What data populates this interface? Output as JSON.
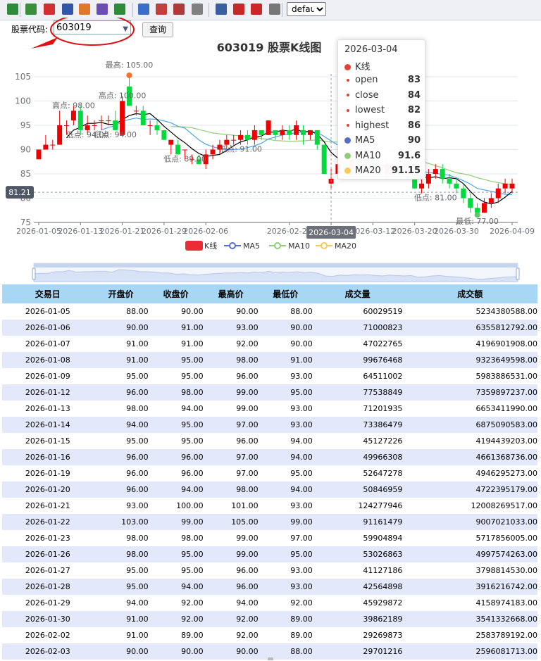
{
  "toolbar": {
    "icons": [
      "excel-icon",
      "csv-icon",
      "pdf-icon",
      "word-icon",
      "ppt-icon",
      "image-icon",
      "download-icon",
      "print-preview-icon",
      "print-preview-icon",
      "print-preview-icon",
      "print-icon",
      "save-icon",
      "pdf-icon",
      "pdf-icon",
      "print-icon"
    ],
    "theme_value": "default",
    "theme_options": [
      "default"
    ]
  },
  "form": {
    "code_label": "股票代码:",
    "code_value": "603019",
    "query_label": "查询"
  },
  "chart_data": {
    "type": "candlestick",
    "title": "603019 股票K线图",
    "x": [
      "2026-01-05",
      "2026-01-06",
      "2026-01-07",
      "2026-01-08",
      "2026-01-09",
      "2026-01-12",
      "2026-01-13",
      "2026-01-14",
      "2026-01-15",
      "2026-01-16",
      "2026-01-19",
      "2026-01-20",
      "2026-01-21",
      "2026-01-22",
      "2026-01-23",
      "2026-01-26",
      "2026-01-27",
      "2026-01-28",
      "2026-01-29",
      "2026-01-30",
      "2026-02-02",
      "2026-02-03",
      "2026-02-04",
      "2026-02-05",
      "2026-02-06",
      "2026-02-09",
      "2026-02-10",
      "2026-02-11",
      "2026-02-12",
      "2026-02-13",
      "2026-02-16",
      "2026-02-17",
      "2026-02-18",
      "2026-02-19",
      "2026-02-20",
      "2026-02-23",
      "2026-02-24",
      "2026-02-25",
      "2026-02-26",
      "2026-02-27",
      "2026-03-02",
      "2026-03-03",
      "2026-03-04",
      "2026-03-05",
      "2026-03-06",
      "2026-03-09",
      "2026-03-10",
      "2026-03-11",
      "2026-03-12",
      "2026-03-13",
      "2026-03-16",
      "2026-03-17",
      "2026-03-18",
      "2026-03-19",
      "2026-03-20",
      "2026-03-23",
      "2026-03-24",
      "2026-03-25",
      "2026-03-26",
      "2026-03-27",
      "2026-03-30",
      "2026-03-31",
      "2026-04-01",
      "2026-04-02",
      "2026-04-03",
      "2026-04-06",
      "2026-04-07",
      "2026-04-08",
      "2026-04-09"
    ],
    "x_ticks": [
      "2026-01-05",
      "2026-01-13",
      "2026-01-21",
      "2026-01-29",
      "2026-02-06",
      "2026-02-24",
      "2026-03-04",
      "2026-03-12",
      "2026-03-20",
      "2026-03-30",
      "2026-04-09"
    ],
    "candles": [
      [
        88,
        90,
        88,
        90
      ],
      [
        90,
        91,
        90,
        93
      ],
      [
        91,
        91,
        90,
        92
      ],
      [
        91,
        95,
        91,
        98
      ],
      [
        95,
        95,
        93,
        96
      ],
      [
        96,
        98,
        95,
        99
      ],
      [
        98,
        94,
        93,
        99
      ],
      [
        94,
        95,
        93,
        97
      ],
      [
        95,
        95,
        94,
        96
      ],
      [
        96,
        96,
        94,
        97
      ],
      [
        96,
        96,
        95,
        97
      ],
      [
        96,
        94,
        94,
        98
      ],
      [
        93,
        100,
        93,
        101
      ],
      [
        103,
        99,
        99,
        105
      ],
      [
        98,
        98,
        97,
        99
      ],
      [
        98,
        95,
        95,
        99
      ],
      [
        95,
        95,
        93,
        96
      ],
      [
        95,
        94,
        93,
        96
      ],
      [
        94,
        92,
        92,
        94
      ],
      [
        91,
        92,
        89,
        92
      ],
      [
        91,
        89,
        89,
        92
      ],
      [
        90,
        90,
        88,
        90
      ],
      [
        88,
        88,
        87,
        89
      ],
      [
        88,
        87,
        87,
        89
      ],
      [
        87,
        89,
        86,
        90
      ],
      [
        89,
        90,
        88,
        91
      ],
      [
        90,
        91,
        89,
        92
      ],
      [
        91,
        92,
        90,
        93
      ],
      [
        92,
        92,
        91,
        93
      ],
      [
        92,
        93,
        91,
        94
      ],
      [
        93,
        92,
        91,
        94
      ],
      [
        92,
        94,
        91,
        95
      ],
      [
        94,
        93,
        92,
        94
      ],
      [
        93,
        96,
        93,
        96
      ],
      [
        94,
        93,
        92,
        94
      ],
      [
        93,
        94,
        92,
        95
      ],
      [
        94,
        93,
        92,
        95
      ],
      [
        93,
        95,
        92,
        96
      ],
      [
        94,
        93,
        91,
        95
      ],
      [
        93,
        94,
        92,
        94
      ],
      [
        94,
        91,
        90,
        94
      ],
      [
        91,
        85,
        85,
        91
      ],
      [
        83,
        84,
        82,
        86
      ],
      [
        85,
        87,
        84,
        88
      ],
      [
        87,
        86,
        85,
        88
      ],
      [
        86,
        88,
        85,
        89
      ],
      [
        88,
        87,
        86,
        89
      ],
      [
        87,
        88,
        86,
        89
      ],
      [
        88,
        86,
        85,
        88
      ],
      [
        86,
        85,
        84,
        87
      ],
      [
        85,
        87,
        84,
        88
      ],
      [
        87,
        86,
        85,
        88
      ],
      [
        86,
        85,
        84,
        87
      ],
      [
        85,
        86,
        84,
        87
      ],
      [
        84,
        82,
        82,
        85
      ],
      [
        82,
        83,
        81,
        84
      ],
      [
        83,
        85,
        82,
        86
      ],
      [
        85,
        86,
        84,
        87
      ],
      [
        86,
        84,
        83,
        87
      ],
      [
        84,
        83,
        82,
        85
      ],
      [
        83,
        82,
        81,
        84
      ],
      [
        82,
        80,
        79,
        83
      ],
      [
        80,
        78,
        77,
        81
      ],
      [
        78,
        77,
        77,
        79
      ],
      [
        77,
        79,
        77,
        80
      ],
      [
        79,
        80,
        78,
        81
      ],
      [
        80,
        82,
        79,
        83
      ],
      [
        82,
        83,
        81,
        84
      ],
      [
        82,
        83,
        81,
        84
      ]
    ],
    "y_ticks": [
      75,
      80,
      85,
      90,
      95,
      100,
      105
    ],
    "ylim": [
      75,
      107
    ],
    "current_price": "81.21",
    "legend": [
      "K线",
      "MA5",
      "MA10",
      "MA20"
    ],
    "annotations": [
      {
        "text": "最高: 105.00",
        "index": 13,
        "value": 105
      },
      {
        "text": "高点: 98.00",
        "index": 5,
        "value": 98
      },
      {
        "text": "高点: 100.00",
        "index": 12,
        "value": 100
      },
      {
        "text": "低点: 94.00",
        "index": 7,
        "value": 94
      },
      {
        "text": "低点: 94.00",
        "index": 11,
        "value": 94
      },
      {
        "text": "低点: 89.00",
        "index": 21,
        "value": 89
      },
      {
        "text": "低点: 91.00",
        "index": 29,
        "value": 91
      },
      {
        "text": "低点: 81.00",
        "index": 57,
        "value": 81
      },
      {
        "text": "最低: 77.00",
        "index": 63,
        "value": 77
      }
    ],
    "colors": {
      "up": "#ec0000",
      "down": "#00da3c",
      "ma5": "#000000",
      "ma10": "#4aa3e8",
      "ma20": "#91cc75",
      "axis": "#6e7079",
      "grid": "#e0e6f1"
    }
  },
  "tooltip": {
    "date": "2026-03-04",
    "series": "K线",
    "rows": [
      {
        "label": "open",
        "value": "83"
      },
      {
        "label": "close",
        "value": "84"
      },
      {
        "label": "lowest",
        "value": "82"
      },
      {
        "label": "highest",
        "value": "86"
      }
    ],
    "ma": [
      {
        "label": "MA5",
        "value": "90",
        "color": "#5470c6"
      },
      {
        "label": "MA10",
        "value": "91.6",
        "color": "#91cc75"
      },
      {
        "label": "MA20",
        "value": "91.15",
        "color": "#fac858"
      }
    ],
    "cursor_date": "2026-03-04"
  },
  "table": {
    "headers": [
      "交易日",
      "开盘价",
      "收盘价",
      "最高价",
      "最低价",
      "成交量",
      "成交额"
    ],
    "rows": [
      [
        "2026-01-05",
        "88.00",
        "90.00",
        "90.00",
        "88.00",
        "60029519",
        "5234380588.00"
      ],
      [
        "2026-01-06",
        "90.00",
        "91.00",
        "93.00",
        "90.00",
        "71000823",
        "6355812792.00"
      ],
      [
        "2026-01-07",
        "91.00",
        "91.00",
        "92.00",
        "90.00",
        "47022765",
        "4196901908.00"
      ],
      [
        "2026-01-08",
        "91.00",
        "95.00",
        "98.00",
        "91.00",
        "99676468",
        "9323649598.00"
      ],
      [
        "2026-01-09",
        "95.00",
        "95.00",
        "96.00",
        "93.00",
        "64511002",
        "5983886531.00"
      ],
      [
        "2026-01-12",
        "96.00",
        "98.00",
        "99.00",
        "95.00",
        "77538849",
        "7359897237.00"
      ],
      [
        "2026-01-13",
        "98.00",
        "94.00",
        "99.00",
        "93.00",
        "71201935",
        "6653411990.00"
      ],
      [
        "2026-01-14",
        "94.00",
        "95.00",
        "97.00",
        "93.00",
        "73386479",
        "6875090583.00"
      ],
      [
        "2026-01-15",
        "95.00",
        "95.00",
        "96.00",
        "94.00",
        "45127226",
        "4194439203.00"
      ],
      [
        "2026-01-16",
        "96.00",
        "96.00",
        "97.00",
        "94.00",
        "49966308",
        "4661368736.00"
      ],
      [
        "2026-01-19",
        "96.00",
        "96.00",
        "97.00",
        "95.00",
        "52647278",
        "4946295273.00"
      ],
      [
        "2026-01-20",
        "96.00",
        "94.00",
        "98.00",
        "94.00",
        "50846959",
        "4722395179.00"
      ],
      [
        "2026-01-21",
        "93.00",
        "100.00",
        "101.00",
        "93.00",
        "124277946",
        "12008269517.00"
      ],
      [
        "2026-01-22",
        "103.00",
        "99.00",
        "105.00",
        "99.00",
        "91161479",
        "9007021033.00"
      ],
      [
        "2026-01-23",
        "98.00",
        "98.00",
        "99.00",
        "97.00",
        "59904894",
        "5717856005.00"
      ],
      [
        "2026-01-26",
        "98.00",
        "95.00",
        "99.00",
        "95.00",
        "53026863",
        "4997574263.00"
      ],
      [
        "2026-01-27",
        "95.00",
        "95.00",
        "96.00",
        "93.00",
        "41127186",
        "3798814530.00"
      ],
      [
        "2026-01-28",
        "95.00",
        "94.00",
        "96.00",
        "93.00",
        "42564898",
        "3916216742.00"
      ],
      [
        "2026-01-29",
        "94.00",
        "92.00",
        "94.00",
        "92.00",
        "45929872",
        "4158974183.00"
      ],
      [
        "2026-01-30",
        "91.00",
        "92.00",
        "92.00",
        "89.00",
        "39862189",
        "3541332668.00"
      ],
      [
        "2026-02-02",
        "91.00",
        "89.00",
        "92.00",
        "89.00",
        "29269873",
        "2583789192.00"
      ],
      [
        "2026-02-03",
        "90.00",
        "90.00",
        "90.00",
        "88.00",
        "29701216",
        "2596081713.00"
      ]
    ]
  }
}
